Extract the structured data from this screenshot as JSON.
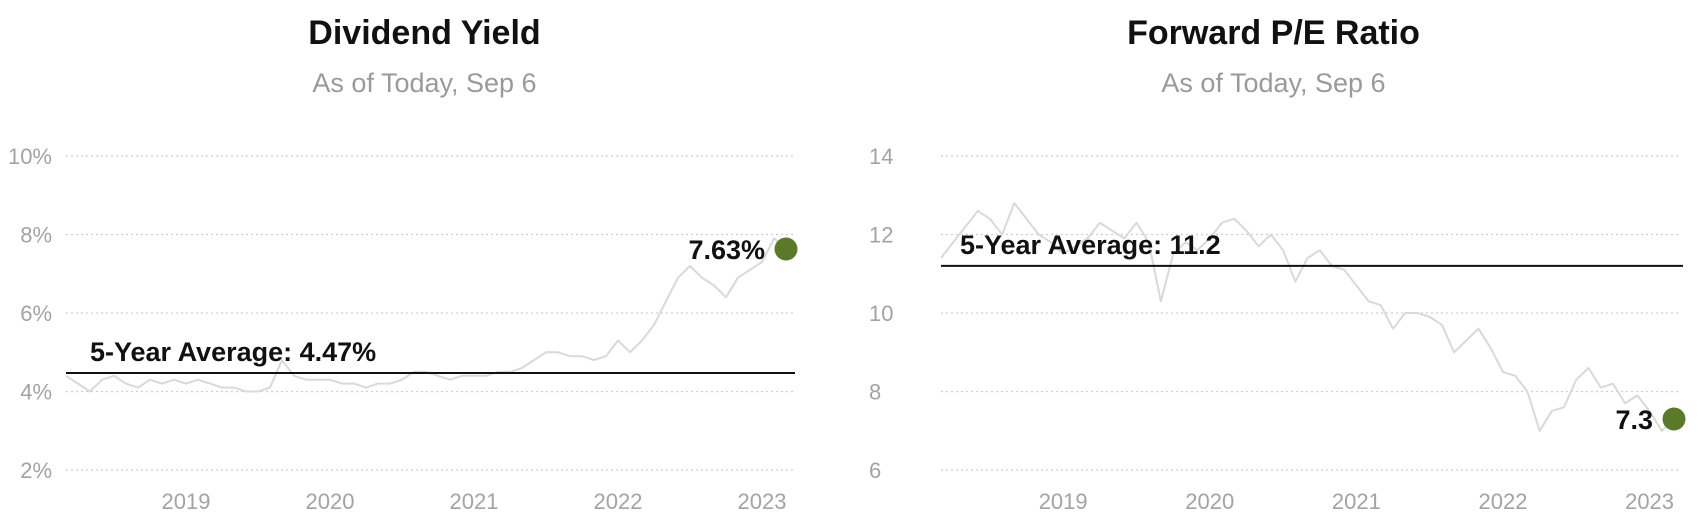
{
  "colors": {
    "series": "#d9d9d9",
    "marker": "#5b7a29",
    "average_line": "#111111",
    "grid": "#cfcfcf",
    "tick_text": "#a3a3a3"
  },
  "charts": {
    "dividend_yield": {
      "title": "Dividend Yield",
      "subtitle": "As of Today, Sep 6",
      "average_label": "5-Year Average: 4.47%",
      "last_label": "7.63%"
    },
    "forward_pe": {
      "title": "Forward P/E Ratio",
      "subtitle": "As of Today, Sep 6",
      "average_label": "5-Year Average: 11.2",
      "last_label": "7.3"
    }
  },
  "chart_data": [
    {
      "type": "line",
      "title": "Dividend Yield",
      "subtitle": "As of Today, Sep 6",
      "xlabel": "",
      "ylabel": "",
      "xlim": [
        "2018-09",
        "2023-09"
      ],
      "ylim": [
        2,
        10
      ],
      "y_ticks": [
        "2%",
        "4%",
        "6%",
        "8%",
        "10%"
      ],
      "y_tick_values": [
        2,
        4,
        6,
        8,
        10
      ],
      "x_ticks": [
        "2019",
        "2020",
        "2021",
        "2022",
        "2023"
      ],
      "grid": true,
      "average": 4.47,
      "average_label": "5-Year Average: 4.47%",
      "last_value": 7.63,
      "last_label": "7.63%",
      "series": [
        {
          "x": [
            "2018-09",
            "2018-10",
            "2018-11",
            "2018-12",
            "2019-01",
            "2019-02",
            "2019-03",
            "2019-04",
            "2019-05",
            "2019-06",
            "2019-07",
            "2019-08",
            "2019-09",
            "2019-10",
            "2019-11",
            "2019-12",
            "2020-01",
            "2020-02",
            "2020-03",
            "2020-04",
            "2020-05",
            "2020-06",
            "2020-07",
            "2020-08",
            "2020-09",
            "2020-10",
            "2020-11",
            "2020-12",
            "2021-01",
            "2021-02",
            "2021-03",
            "2021-04",
            "2021-05",
            "2021-06",
            "2021-07",
            "2021-08",
            "2021-09",
            "2021-10",
            "2021-11",
            "2021-12",
            "2022-01",
            "2022-02",
            "2022-03",
            "2022-04",
            "2022-05",
            "2022-06",
            "2022-07",
            "2022-08",
            "2022-09",
            "2022-10",
            "2022-11",
            "2022-12",
            "2023-01",
            "2023-02",
            "2023-03",
            "2023-04",
            "2023-05",
            "2023-06",
            "2023-07",
            "2023-08",
            "2023-09"
          ],
          "y": [
            4.4,
            4.2,
            4.0,
            4.3,
            4.4,
            4.2,
            4.1,
            4.3,
            4.2,
            4.3,
            4.2,
            4.3,
            4.2,
            4.1,
            4.1,
            4.0,
            4.0,
            4.1,
            4.8,
            4.4,
            4.3,
            4.3,
            4.3,
            4.2,
            4.2,
            4.1,
            4.2,
            4.2,
            4.3,
            4.5,
            4.5,
            4.4,
            4.3,
            4.4,
            4.4,
            4.4,
            4.5,
            4.5,
            4.6,
            4.8,
            5.0,
            5.0,
            4.9,
            4.9,
            4.8,
            4.9,
            5.3,
            5.0,
            5.3,
            5.7,
            6.3,
            6.9,
            7.2,
            6.9,
            6.7,
            6.4,
            6.9,
            7.1,
            7.3,
            7.9,
            7.63
          ]
        }
      ]
    },
    {
      "type": "line",
      "title": "Forward P/E Ratio",
      "subtitle": "As of Today, Sep 6",
      "xlabel": "",
      "ylabel": "",
      "xlim": [
        "2018-09",
        "2023-09"
      ],
      "ylim": [
        6,
        14
      ],
      "y_ticks": [
        "6",
        "8",
        "10",
        "12",
        "14"
      ],
      "y_tick_values": [
        6,
        8,
        10,
        12,
        14
      ],
      "x_ticks": [
        "2019",
        "2020",
        "2021",
        "2022",
        "2023"
      ],
      "grid": true,
      "average": 11.2,
      "average_label": "5-Year Average: 11.2",
      "last_value": 7.3,
      "last_label": "7.3",
      "series": [
        {
          "x": [
            "2018-09",
            "2018-10",
            "2018-11",
            "2018-12",
            "2019-01",
            "2019-02",
            "2019-03",
            "2019-04",
            "2019-05",
            "2019-06",
            "2019-07",
            "2019-08",
            "2019-09",
            "2019-10",
            "2019-11",
            "2019-12",
            "2020-01",
            "2020-02",
            "2020-03",
            "2020-04",
            "2020-05",
            "2020-06",
            "2020-07",
            "2020-08",
            "2020-09",
            "2020-10",
            "2020-11",
            "2020-12",
            "2021-01",
            "2021-02",
            "2021-03",
            "2021-04",
            "2021-05",
            "2021-06",
            "2021-07",
            "2021-08",
            "2021-09",
            "2021-10",
            "2021-11",
            "2021-12",
            "2022-01",
            "2022-02",
            "2022-03",
            "2022-04",
            "2022-05",
            "2022-06",
            "2022-07",
            "2022-08",
            "2022-09",
            "2022-10",
            "2022-11",
            "2022-12",
            "2023-01",
            "2023-02",
            "2023-03",
            "2023-04",
            "2023-05",
            "2023-06",
            "2023-07",
            "2023-08",
            "2023-09"
          ],
          "y": [
            11.4,
            11.8,
            12.2,
            12.6,
            12.4,
            12.0,
            12.8,
            12.4,
            12.0,
            11.8,
            11.5,
            11.7,
            11.9,
            12.3,
            12.1,
            11.9,
            12.3,
            11.8,
            10.3,
            11.5,
            11.8,
            11.6,
            11.9,
            12.3,
            12.4,
            12.1,
            11.7,
            12.0,
            11.6,
            10.8,
            11.4,
            11.6,
            11.2,
            11.1,
            10.7,
            10.3,
            10.2,
            9.6,
            10.0,
            10.0,
            9.9,
            9.7,
            9.0,
            9.3,
            9.6,
            9.1,
            8.5,
            8.4,
            8.0,
            7.0,
            7.5,
            7.6,
            8.3,
            8.6,
            8.1,
            8.2,
            7.7,
            7.9,
            7.5,
            7.0,
            7.3
          ]
        }
      ]
    }
  ]
}
